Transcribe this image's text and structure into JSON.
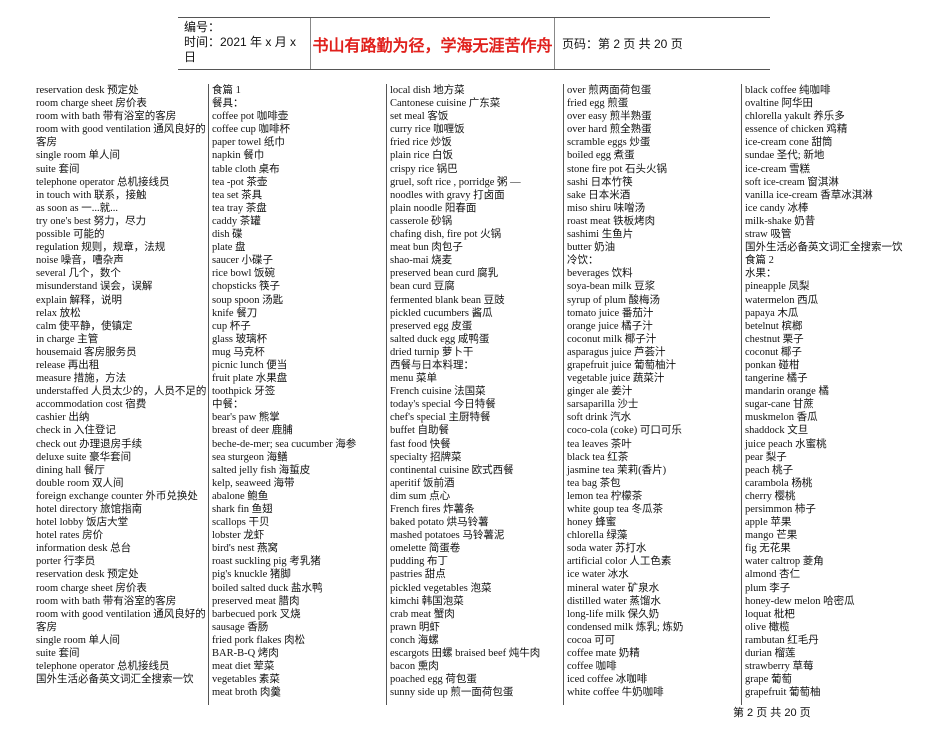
{
  "header": {
    "number_label": "编号：",
    "time_label": "时间：2021 年 x 月 x 日",
    "motto": "书山有路勤为径，学海无涯苦作舟",
    "page_label": "页码：第 2 页  共 20 页",
    "motto_color": "#e0201c"
  },
  "columns": [
    [
      "reservation desk 预定处",
      "room charge sheet 房价表",
      "room with bath 带有浴室的客房",
      "room with good ventilation 通风良好的客房",
      "single room 单人间",
      "suite 套间",
      "telephone operator 总机接线员",
      "in touch with 联系，接触",
      "as soon as 一...就...",
      "try one's best 努力，尽力",
      "possible 可能的",
      "regulation 规则，规章，法规",
      "noise 噪音，嘈杂声",
      "several 几个，数个",
      "misunderstand 误会，误解",
      "explain 解释，说明",
      "relax 放松",
      "calm 使平静，使镇定",
      "in charge 主管",
      "housemaid 客房服务员",
      "release 再出租",
      "measure 措施，方法",
      "understaffed 人员太少的，人员不足的",
      "accommodation cost 宿费",
      "cashier 出纳",
      "check in 入住登记",
      "check out 办理退房手续",
      "deluxe suite 豪华套间",
      "dining hall 餐厅",
      "double room 双人间",
      "foreign exchange counter 外币兑换处",
      "hotel directory 旅馆指南",
      "hotel lobby 饭店大堂",
      "hotel rates 房价",
      "information desk 总台",
      "porter 行李员",
      "reservation desk 预定处",
      "room charge sheet 房价表",
      "room with bath 带有浴室的客房",
      "room with good ventilation 通风良好的客房",
      "single room 单人间",
      "suite 套间",
      "telephone operator 总机接线员",
      "国外生活必备英文词汇全搜索一饮"
    ],
    [
      "食篇 1",
      "餐具：",
      "coffee pot 咖啡壶",
      "coffee cup 咖啡杯",
      "paper towel 纸巾",
      "napkin 餐巾",
      "table cloth 桌布",
      "tea -pot 茶壶",
      "tea set 茶具",
      "tea tray 茶盘",
      "caddy 茶罐",
      "dish 碟",
      "plate 盘",
      "saucer 小碟子",
      "rice bowl 饭碗",
      "chopsticks 筷子",
      "soup spoon 汤匙",
      "knife 餐刀",
      "cup 杯子",
      "glass 玻璃杯",
      "mug 马克杯",
      "picnic lunch 便当",
      "fruit plate 水果盘",
      "toothpick 牙签",
      "中餐：",
      "bear's paw 熊掌",
      "breast of deer 鹿脯",
      "beche-de-mer; sea cucumber 海参",
      "sea sturgeon 海鳝",
      "salted jelly fish 海蜇皮",
      "kelp, seaweed 海带",
      "abalone 鲍鱼",
      "shark fin 鱼翅",
      "scallops 干贝",
      "lobster 龙虾",
      "bird's nest 燕窝",
      "roast suckling pig 考乳猪",
      "pig's knuckle 猪脚",
      "boiled salted duck 盐水鸭",
      "preserved meat 腊肉",
      "barbecued pork 叉烧",
      "sausage 香肠",
      "fried pork flakes 肉松",
      "BAR-B-Q 烤肉",
      "meat diet 荤菜",
      "vegetables 素菜",
      "meat broth 肉羹"
    ],
    [
      "local dish 地方菜",
      "Cantonese cuisine 广东菜",
      "set meal 客饭",
      "curry rice 咖喱饭",
      "fried rice 炒饭",
      "plain rice 白饭",
      "crispy rice 锅巴",
      "gruel, soft rice , porridge 粥 —",
      "noodles with gravy 打卤面",
      "plain noodle 阳春面",
      "casserole 砂锅",
      "chafing dish, fire pot 火锅",
      "meat bun 肉包子",
      "shao-mai 烧麦",
      "preserved bean curd 腐乳",
      "bean curd 豆腐",
      "fermented blank bean 豆豉",
      "pickled cucumbers 酱瓜",
      "preserved egg 皮蛋",
      "salted duck egg 咸鸭蛋",
      "dried turnip 萝卜干",
      "西餐与日本料理：",
      "menu 菜单",
      "French cuisine 法国菜",
      "today's special 今日特餐",
      "chef's special 主厨特餐",
      "buffet 自助餐",
      "fast food 快餐",
      "specialty 招牌菜",
      "continental cuisine 欧式西餐",
      "aperitif 饭前酒",
      "dim sum 点心",
      "French fires 炸薯条",
      "baked potato 烘马铃薯",
      "mashed potatoes 马铃薯泥",
      "omelette 简蛋卷",
      "pudding 布丁",
      "pastries 甜点",
      "pickled vegetables 泡菜",
      "kimchi 韩国泡菜",
      "crab meat 蟹肉",
      "prawn 明虾",
      "conch 海螺",
      "escargots 田螺 braised beef 炖牛肉",
      "bacon 熏肉",
      "poached egg 荷包蛋",
      "sunny side up 煎一面荷包蛋"
    ],
    [
      "over 煎两面荷包蛋",
      "fried egg 煎蛋",
      "over easy 煎半熟蛋",
      "over hard 煎全熟蛋",
      "scramble eggs 炒蛋",
      "boiled egg 煮蛋",
      "stone fire pot 石头火锅",
      "sashi 日本竹筷",
      "sake 日本米酒",
      "miso shiru 味噌汤",
      "roast meat 铁板烤肉",
      "sashimi 生鱼片",
      "butter 奶油",
      "冷饮：",
      "beverages 饮料",
      "soya-bean milk 豆浆",
      "syrup of plum 酸梅汤",
      "tomato juice 番茄汁",
      "orange juice 橘子汁",
      "coconut milk 椰子汁",
      "asparagus juice 芦荟汁",
      "grapefruit juice 葡萄柚汁",
      "vegetable juice 蔬菜汁",
      "ginger ale 姜汁",
      "sarsaparilla 沙士",
      "soft drink 汽水",
      "coco-cola (coke) 可口可乐",
      "tea leaves 茶叶",
      "black tea 红茶",
      "jasmine tea 茉莉(香片)",
      "tea bag 茶包",
      "lemon tea 柠檬茶",
      "white goup tea 冬瓜茶",
      "honey 蜂蜜",
      "chlorella 绿藻",
      "soda water 苏打水",
      "artificial color 人工色素",
      "ice water 冰水",
      "mineral water 矿泉水",
      "distilled water 蒸馏水",
      "long-life milk 保久奶",
      "condensed milk 炼乳; 炼奶",
      "cocoa 可可",
      "coffee mate 奶精",
      "coffee 咖啡",
      "iced coffee 冰咖啡",
      "white coffee 牛奶咖啡"
    ],
    [
      "black coffee 纯咖啡",
      "ovaltine 阿华田",
      "chlorella yakult 养乐多",
      "essence of chicken 鸡精",
      "ice-cream cone 甜筒",
      "sundae 圣代; 新地",
      "ice-cream 雪糕",
      "soft ice-cream 窗淇淋",
      "vanilla ice-cream 香草冰淇淋",
      "ice candy 冰棒",
      "milk-shake 奶昔",
      "straw 吸管",
      "国外生活必备英文词汇全搜索一饮",
      "食篇 2",
      "水果：",
      "pineapple 凤梨",
      "watermelon 西瓜",
      "papaya 木瓜",
      "betelnut 槟榔",
      "chestnut 栗子",
      "coconut 椰子",
      "ponkan 碰柑",
      "tangerine 橘子",
      "mandarin orange 橘",
      "sugar-cane 甘蔗",
      "muskmelon 香瓜",
      "shaddock 文旦",
      "juice peach 水蜜桃",
      "pear 梨子",
      "peach 桃子",
      "carambola 杨桃",
      "cherry 樱桃",
      "persimmon 柿子",
      "apple 苹果",
      "mango 芒果",
      "fig 无花果",
      "water caltrop 菱角",
      "almond 杏仁",
      "plum 李子",
      "honey-dew melon 哈密瓜",
      "loquat 枇杷",
      "olive 橄榄",
      "rambutan 红毛丹",
      "durian 榴莲",
      "strawberry 草莓",
      "grape 葡萄",
      "grapefruit 葡萄柚"
    ]
  ],
  "footer": {
    "page_text": "第 2 页 共 20 页"
  }
}
